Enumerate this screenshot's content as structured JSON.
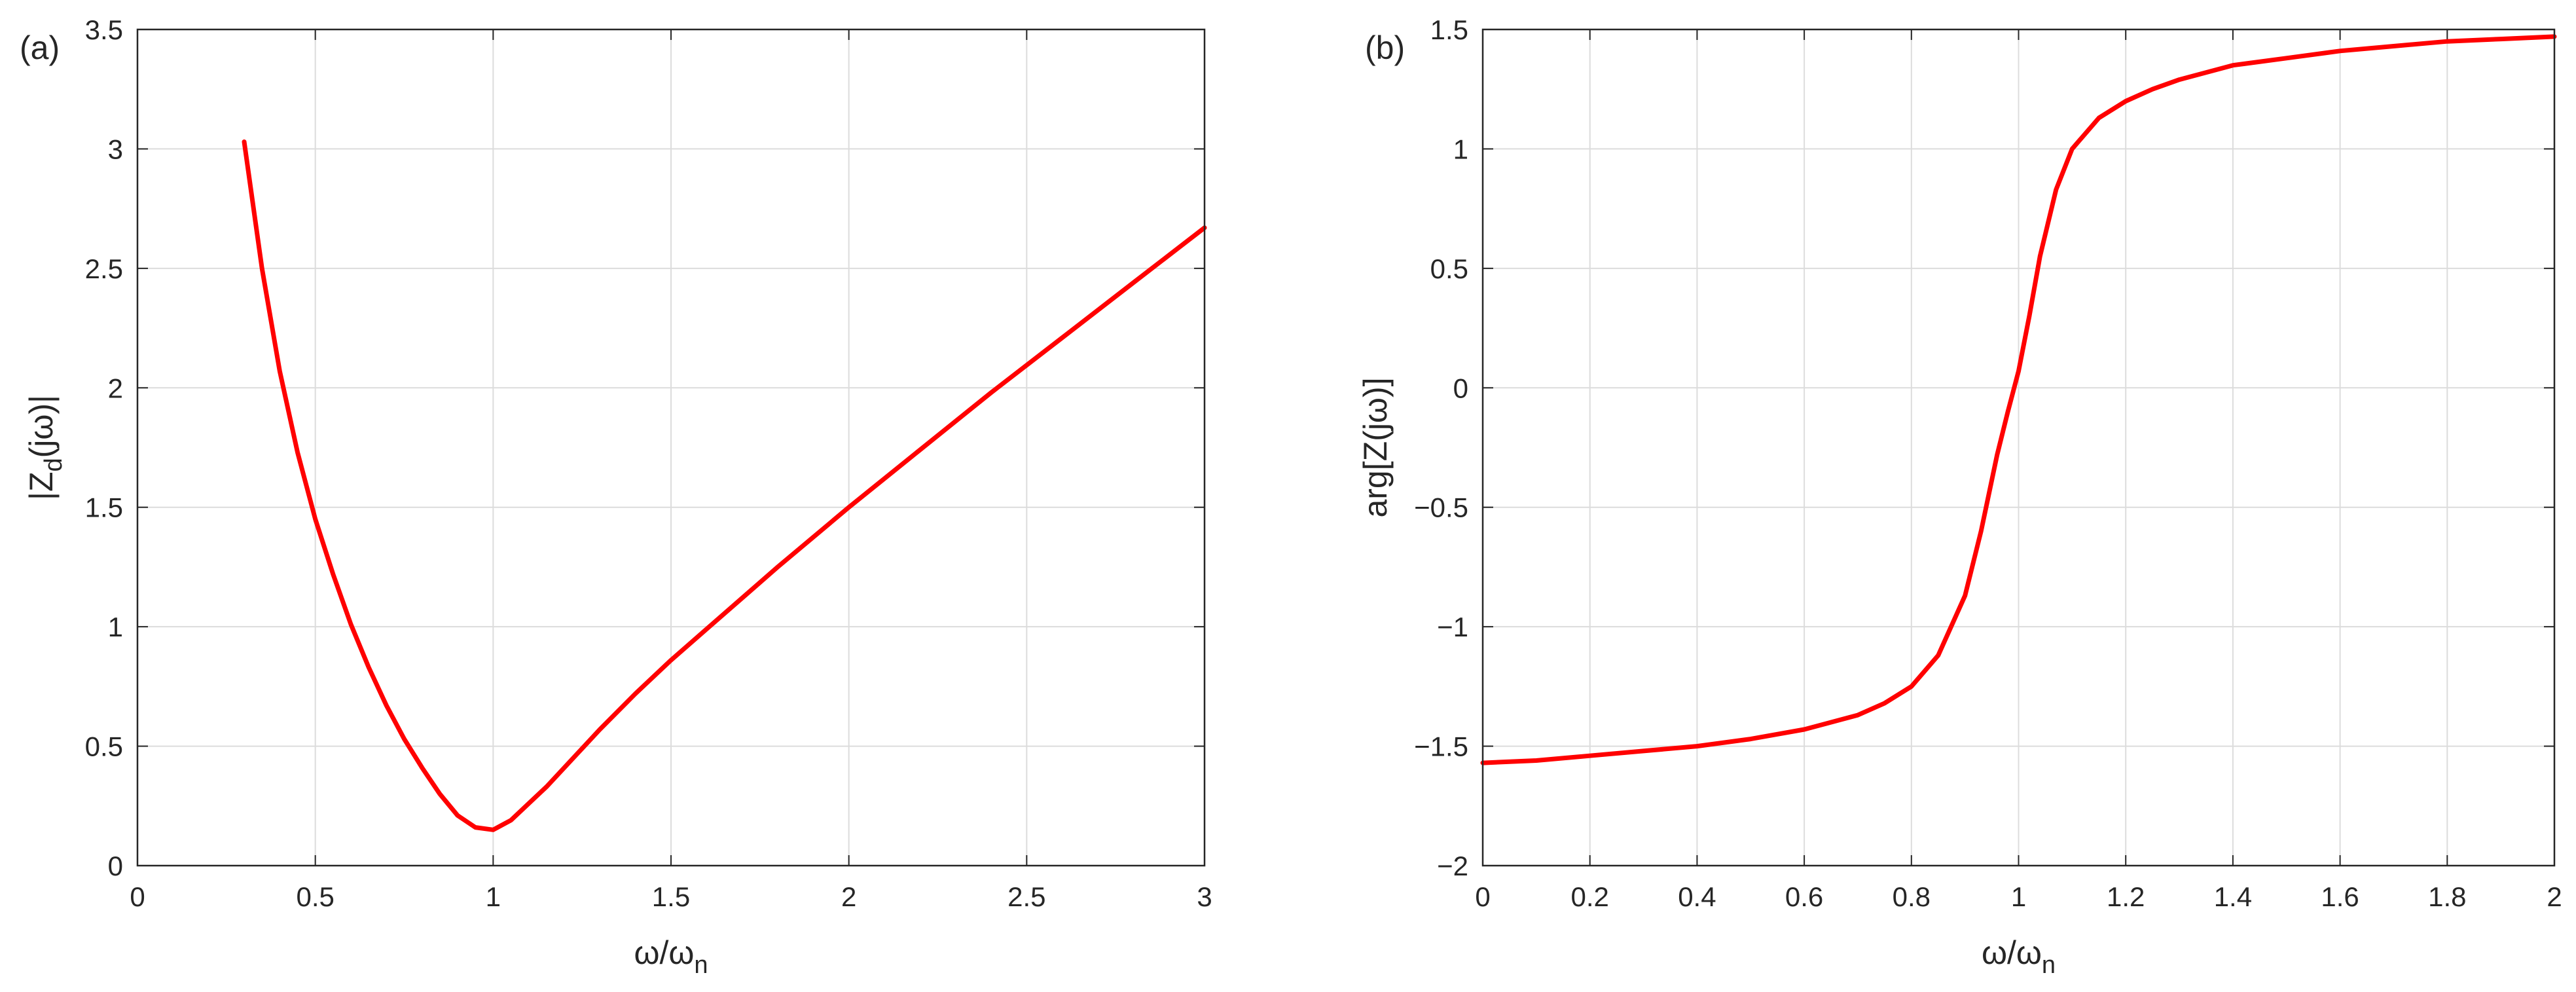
{
  "chart_data": [
    {
      "panel_label": "(a)",
      "type": "line",
      "xlabel": {
        "main": "ω/ω",
        "sub": "n"
      },
      "ylabel": {
        "main": "|Z",
        "sub": "d",
        "tail": "(jω)|"
      },
      "xlim": [
        0,
        3
      ],
      "ylim": [
        0,
        3.5
      ],
      "xticks": [
        0,
        0.5,
        1,
        1.5,
        2,
        2.5,
        3
      ],
      "xtick_labels": [
        "0",
        "0.5",
        "1",
        "1.5",
        "2",
        "2.5",
        "3"
      ],
      "yticks": [
        0,
        0.5,
        1,
        1.5,
        2,
        2.5,
        3,
        3.5
      ],
      "ytick_labels": [
        "0",
        "0.5",
        "1",
        "1.5",
        "2",
        "2.5",
        "3",
        "3.5"
      ],
      "grid": true,
      "series": [
        {
          "color": "#ff0000",
          "x": [
            0.3,
            0.35,
            0.4,
            0.45,
            0.5,
            0.55,
            0.6,
            0.65,
            0.7,
            0.75,
            0.8,
            0.85,
            0.9,
            0.95,
            1.0,
            1.05,
            1.1,
            1.15,
            1.2,
            1.3,
            1.4,
            1.5,
            1.6,
            1.8,
            2.0,
            2.2,
            2.4,
            2.6,
            2.8,
            3.0
          ],
          "y": [
            3.03,
            2.5,
            2.07,
            1.73,
            1.45,
            1.22,
            1.01,
            0.83,
            0.67,
            0.53,
            0.41,
            0.3,
            0.21,
            0.16,
            0.15,
            0.19,
            0.26,
            0.33,
            0.41,
            0.57,
            0.72,
            0.86,
            0.99,
            1.25,
            1.5,
            1.74,
            1.98,
            2.21,
            2.44,
            2.67
          ]
        }
      ]
    },
    {
      "panel_label": "(b)",
      "type": "line",
      "xlabel": {
        "main": "ω/ω",
        "sub": "n"
      },
      "ylabel": {
        "main": "arg[Z(jω)]"
      },
      "xlim": [
        0,
        2
      ],
      "ylim": [
        -2,
        1.5
      ],
      "xticks": [
        0,
        0.2,
        0.4,
        0.6,
        0.8,
        1,
        1.2,
        1.4,
        1.6,
        1.8,
        2
      ],
      "xtick_labels": [
        "0",
        "0.2",
        "0.4",
        "0.6",
        "0.8",
        "1",
        "1.2",
        "1.4",
        "1.6",
        "1.8",
        "2"
      ],
      "yticks": [
        -2,
        -1.5,
        -1,
        -0.5,
        0,
        0.5,
        1,
        1.5
      ],
      "ytick_labels": [
        "−2",
        "−1.5",
        "−1",
        "−0.5",
        "0",
        "0.5",
        "1",
        "1.5"
      ],
      "grid": true,
      "series": [
        {
          "color": "#ff0000",
          "x": [
            0.0,
            0.1,
            0.2,
            0.3,
            0.4,
            0.5,
            0.6,
            0.7,
            0.75,
            0.8,
            0.85,
            0.9,
            0.93,
            0.96,
            0.98,
            1.0,
            1.02,
            1.04,
            1.07,
            1.1,
            1.15,
            1.2,
            1.25,
            1.3,
            1.4,
            1.5,
            1.6,
            1.7,
            1.8,
            1.9,
            2.0
          ],
          "y": [
            -1.57,
            -1.56,
            -1.54,
            -1.52,
            -1.5,
            -1.47,
            -1.43,
            -1.37,
            -1.32,
            -1.25,
            -1.12,
            -0.87,
            -0.6,
            -0.28,
            -0.1,
            0.07,
            0.3,
            0.55,
            0.83,
            1.0,
            1.13,
            1.2,
            1.25,
            1.29,
            1.35,
            1.38,
            1.41,
            1.43,
            1.45,
            1.46,
            1.47
          ]
        }
      ]
    }
  ]
}
